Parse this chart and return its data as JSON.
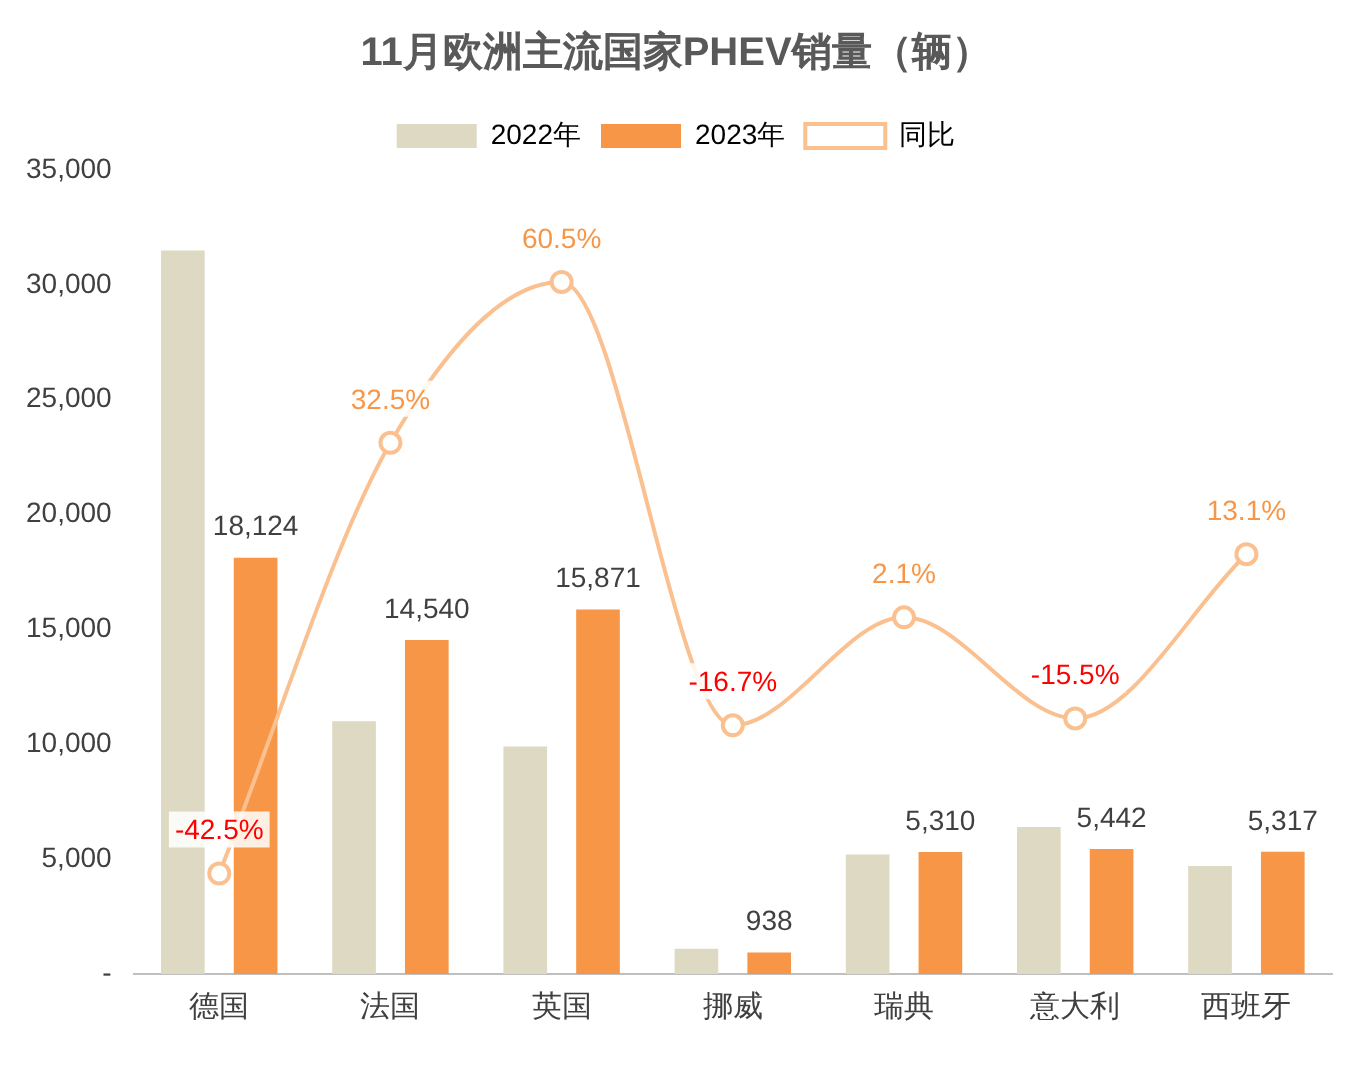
{
  "chart_data": {
    "type": "bar",
    "title": "11月欧洲主流国家PHEV销量（辆）",
    "categories": [
      "德国",
      "法国",
      "英国",
      "挪威",
      "瑞典",
      "意大利",
      "西班牙"
    ],
    "series": [
      {
        "name": "2022年",
        "color": "#ddd9c3",
        "values": [
          31500,
          11000,
          9900,
          1100,
          5200,
          6400,
          4700
        ]
      },
      {
        "name": "2023年",
        "color": "#f79646",
        "values": [
          18124,
          14540,
          15871,
          938,
          5310,
          5442,
          5317
        ],
        "value_labels": [
          "18,124",
          "14,540",
          "15,871",
          "938",
          "5,310",
          "5,442",
          "5,317"
        ]
      },
      {
        "name": "同比",
        "type": "line",
        "axis": "y2",
        "color": "#fac090",
        "values": [
          -42.5,
          32.5,
          60.5,
          -16.7,
          2.1,
          -15.5,
          13.1
        ],
        "value_labels": [
          "-42.5%",
          "32.5%",
          "60.5%",
          "-16.7%",
          "2.1%",
          "-15.5%",
          "13.1%"
        ]
      }
    ],
    "ylim": [
      0,
      35000
    ],
    "yticks": [
      {
        "value": 0,
        "label": "-"
      },
      {
        "value": 5000,
        "label": "5,000"
      },
      {
        "value": 10000,
        "label": "10,000"
      },
      {
        "value": 15000,
        "label": "15,000"
      },
      {
        "value": 20000,
        "label": "20,000"
      },
      {
        "value": 25000,
        "label": "25,000"
      },
      {
        "value": 30000,
        "label": "30,000"
      },
      {
        "value": 35000,
        "label": "35,000"
      }
    ],
    "tick_labels": "y",
    "grid": false,
    "legend": "top",
    "marker": "circle",
    "line_style": "solid"
  }
}
